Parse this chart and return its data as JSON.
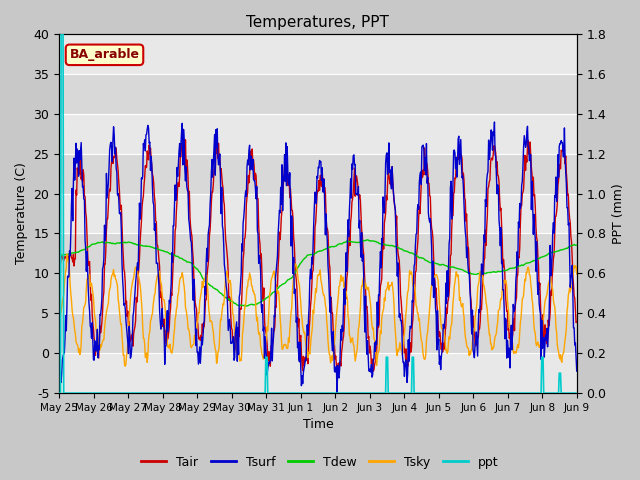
{
  "title": "Temperatures, PPT",
  "xlabel": "Time",
  "ylabel_left": "Temperature (C)",
  "ylabel_right": "PPT (mm)",
  "ylim_left": [
    -5,
    40
  ],
  "ylim_right": [
    0.0,
    1.8
  ],
  "yticks_left": [
    -5,
    0,
    5,
    10,
    15,
    20,
    25,
    30,
    35,
    40
  ],
  "yticks_right": [
    0.0,
    0.2,
    0.4,
    0.6,
    0.8,
    1.0,
    1.2,
    1.4,
    1.6,
    1.8
  ],
  "fig_bg_color": "#c8c8c8",
  "plot_bg_color": "#d8d8d8",
  "stripe_color": "#e8e8e8",
  "colors": {
    "Tair": "#cc0000",
    "Tsurf": "#0000cc",
    "Tdew": "#00cc00",
    "Tsky": "#ffa500",
    "ppt": "#00cccc"
  },
  "annotation_text": "BA_arable",
  "annotation_bg": "#ffffcc",
  "annotation_border": "#cc0000",
  "n_points": 800,
  "tick_labels": [
    "May 25",
    "May 26",
    "May 27",
    "May 28",
    "May 29",
    "May 30",
    "May 31",
    "Jun 1",
    "Jun 2",
    "Jun 3",
    "Jun 4",
    "Jun 5",
    "Jun 6",
    "Jun 7",
    "Jun 8",
    "Jun 9"
  ],
  "linewidth": 1.0
}
